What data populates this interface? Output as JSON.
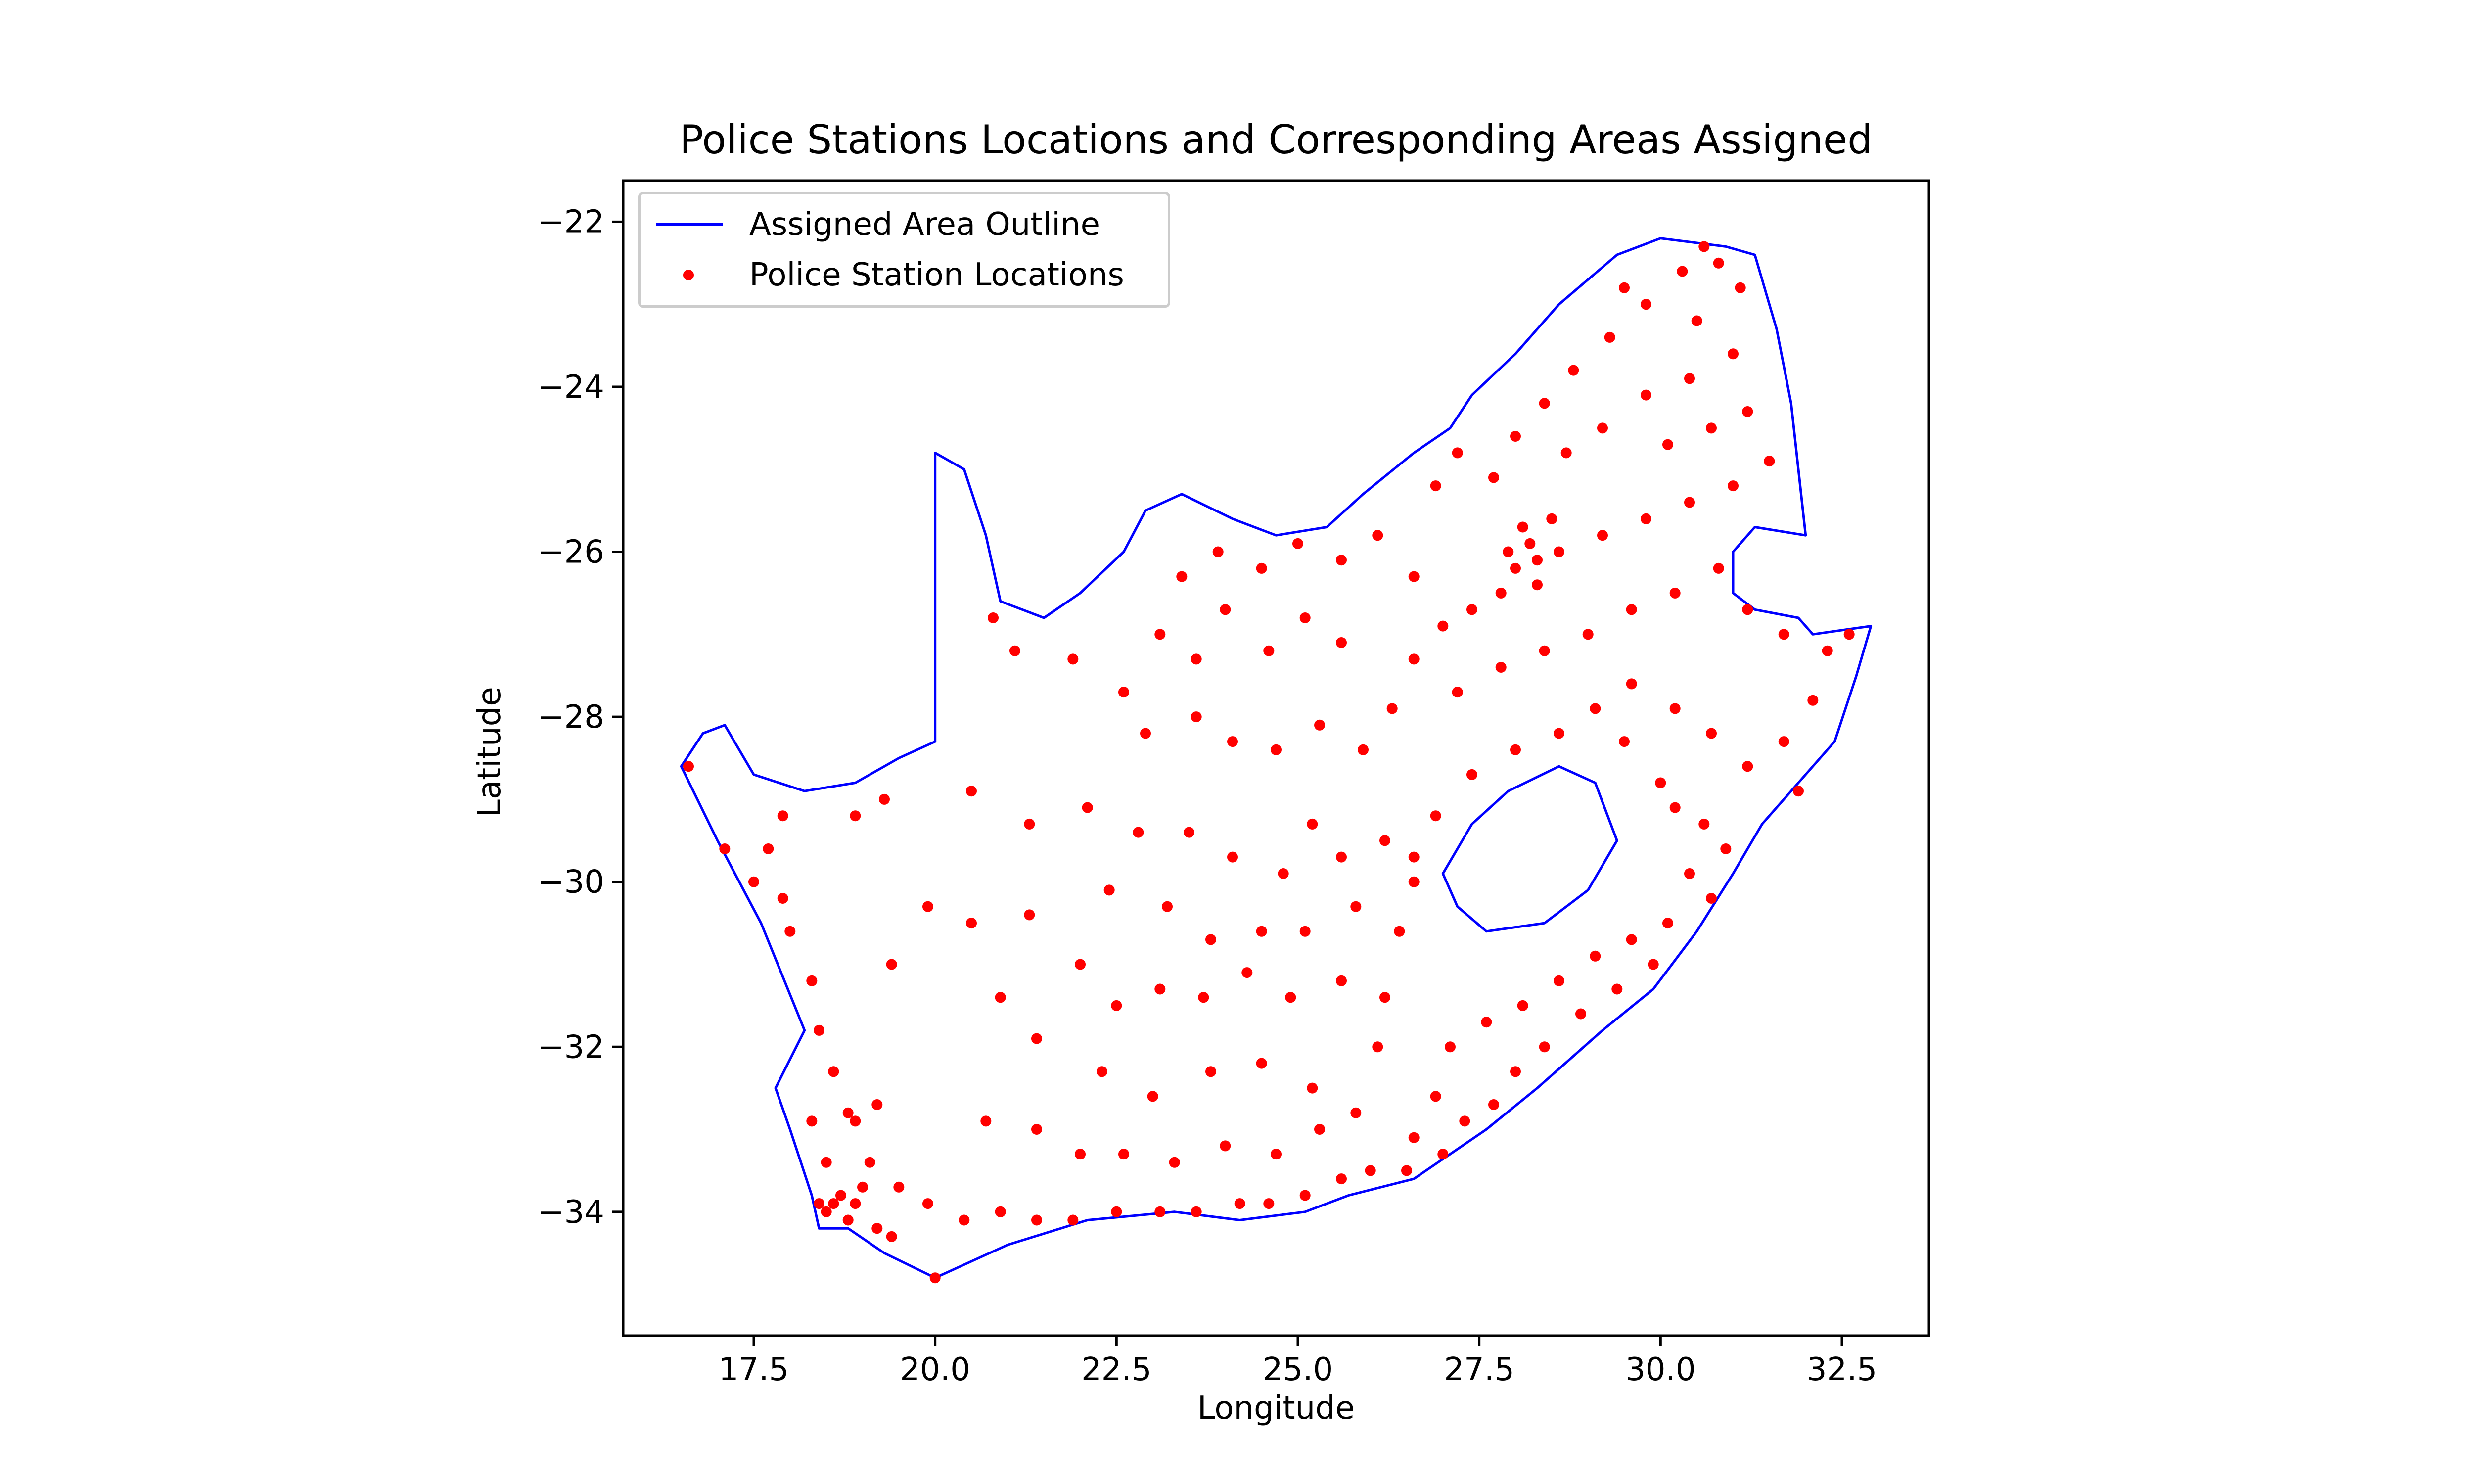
{
  "chart_data": {
    "type": "scatter",
    "title": "Police Stations Locations and Corresponding Areas Assigned",
    "xlabel": "Longitude",
    "ylabel": "Latitude",
    "xlim": [
      15.7,
      33.7
    ],
    "ylim": [
      -35.5,
      -21.5
    ],
    "xticks": [
      17.5,
      20.0,
      22.5,
      25.0,
      27.5,
      30.0,
      32.5
    ],
    "xtick_labels": [
      "17.5",
      "20.0",
      "22.5",
      "25.0",
      "27.5",
      "30.0",
      "32.5"
    ],
    "yticks": [
      -22,
      -24,
      -26,
      -28,
      -30,
      -32,
      -34
    ],
    "ytick_labels": [
      "−22",
      "−24",
      "−26",
      "−28",
      "−30",
      "−32",
      "−34"
    ],
    "grid": false,
    "legend_position": "top-left",
    "legend": [
      {
        "label": "Assigned Area Outline",
        "kind": "line",
        "color": "#0000ff"
      },
      {
        "label": "Police Station Locations",
        "kind": "marker",
        "color": "#ff0000"
      }
    ],
    "series": [
      {
        "name": "Assigned Area Outline",
        "kind": "polygon",
        "color": "#0000ff",
        "outline": [
          [
            16.5,
            -28.6
          ],
          [
            16.8,
            -28.2
          ],
          [
            17.1,
            -28.1
          ],
          [
            17.5,
            -28.7
          ],
          [
            18.2,
            -28.9
          ],
          [
            18.9,
            -28.8
          ],
          [
            19.5,
            -28.5
          ],
          [
            20.0,
            -28.3
          ],
          [
            20.0,
            -24.8
          ],
          [
            20.4,
            -25.0
          ],
          [
            20.7,
            -25.8
          ],
          [
            20.9,
            -26.6
          ],
          [
            21.5,
            -26.8
          ],
          [
            22.0,
            -26.5
          ],
          [
            22.6,
            -26.0
          ],
          [
            22.9,
            -25.5
          ],
          [
            23.4,
            -25.3
          ],
          [
            24.1,
            -25.6
          ],
          [
            24.7,
            -25.8
          ],
          [
            25.4,
            -25.7
          ],
          [
            25.9,
            -25.3
          ],
          [
            26.6,
            -24.8
          ],
          [
            27.1,
            -24.5
          ],
          [
            27.4,
            -24.1
          ],
          [
            28.0,
            -23.6
          ],
          [
            28.6,
            -23.0
          ],
          [
            29.4,
            -22.4
          ],
          [
            30.0,
            -22.2
          ],
          [
            30.9,
            -22.3
          ],
          [
            31.3,
            -22.4
          ],
          [
            31.6,
            -23.3
          ],
          [
            31.8,
            -24.2
          ],
          [
            31.9,
            -25.0
          ],
          [
            32.0,
            -25.8
          ],
          [
            31.3,
            -25.7
          ],
          [
            31.0,
            -26.0
          ],
          [
            31.0,
            -26.5
          ],
          [
            31.3,
            -26.7
          ],
          [
            31.9,
            -26.8
          ],
          [
            32.1,
            -27.0
          ],
          [
            32.9,
            -26.9
          ],
          [
            32.7,
            -27.5
          ],
          [
            32.4,
            -28.3
          ],
          [
            31.9,
            -28.8
          ],
          [
            31.4,
            -29.3
          ],
          [
            31.0,
            -29.9
          ],
          [
            30.5,
            -30.6
          ],
          [
            29.9,
            -31.3
          ],
          [
            29.2,
            -31.8
          ],
          [
            28.3,
            -32.5
          ],
          [
            27.6,
            -33.0
          ],
          [
            26.6,
            -33.6
          ],
          [
            25.7,
            -33.8
          ],
          [
            25.1,
            -34.0
          ],
          [
            24.2,
            -34.1
          ],
          [
            23.3,
            -34.0
          ],
          [
            22.1,
            -34.1
          ],
          [
            21.0,
            -34.4
          ],
          [
            20.0,
            -34.8
          ],
          [
            19.3,
            -34.5
          ],
          [
            18.8,
            -34.2
          ],
          [
            18.4,
            -34.2
          ],
          [
            18.3,
            -33.8
          ],
          [
            18.0,
            -33.0
          ],
          [
            17.8,
            -32.5
          ],
          [
            18.2,
            -31.8
          ],
          [
            17.6,
            -30.5
          ],
          [
            17.0,
            -29.5
          ],
          [
            16.5,
            -28.6
          ]
        ],
        "hole": [
          [
            27.0,
            -29.9
          ],
          [
            27.4,
            -29.3
          ],
          [
            27.9,
            -28.9
          ],
          [
            28.6,
            -28.6
          ],
          [
            29.1,
            -28.8
          ],
          [
            29.4,
            -29.5
          ],
          [
            29.0,
            -30.1
          ],
          [
            28.4,
            -30.5
          ],
          [
            27.6,
            -30.6
          ],
          [
            27.2,
            -30.3
          ],
          [
            27.0,
            -29.9
          ]
        ]
      },
      {
        "name": "Police Station Locations",
        "kind": "points",
        "color": "#ff0000",
        "points": [
          [
            16.6,
            -28.6
          ],
          [
            17.1,
            -29.6
          ],
          [
            17.5,
            -30.0
          ],
          [
            17.7,
            -29.6
          ],
          [
            17.9,
            -30.2
          ],
          [
            18.0,
            -30.6
          ],
          [
            18.3,
            -31.2
          ],
          [
            18.4,
            -31.8
          ],
          [
            18.6,
            -32.3
          ],
          [
            18.8,
            -32.8
          ],
          [
            19.1,
            -33.4
          ],
          [
            19.5,
            -33.7
          ],
          [
            19.9,
            -33.9
          ],
          [
            20.4,
            -34.1
          ],
          [
            20.9,
            -34.0
          ],
          [
            21.4,
            -34.1
          ],
          [
            21.9,
            -34.1
          ],
          [
            22.5,
            -34.0
          ],
          [
            23.1,
            -34.0
          ],
          [
            23.6,
            -34.0
          ],
          [
            24.2,
            -33.9
          ],
          [
            24.6,
            -33.9
          ],
          [
            25.1,
            -33.8
          ],
          [
            25.6,
            -33.6
          ],
          [
            26.0,
            -33.5
          ],
          [
            26.5,
            -33.5
          ],
          [
            18.4,
            -33.9
          ],
          [
            18.5,
            -34.0
          ],
          [
            18.6,
            -33.9
          ],
          [
            18.7,
            -33.8
          ],
          [
            18.8,
            -34.1
          ],
          [
            18.9,
            -33.9
          ],
          [
            19.0,
            -33.7
          ],
          [
            19.2,
            -34.2
          ],
          [
            19.4,
            -34.3
          ],
          [
            20.0,
            -34.8
          ],
          [
            18.5,
            -33.4
          ],
          [
            18.9,
            -32.9
          ],
          [
            19.2,
            -32.7
          ],
          [
            18.3,
            -32.9
          ],
          [
            17.9,
            -29.2
          ],
          [
            18.9,
            -29.2
          ],
          [
            19.3,
            -29.0
          ],
          [
            20.5,
            -28.9
          ],
          [
            19.4,
            -31.0
          ],
          [
            19.9,
            -30.3
          ],
          [
            20.5,
            -30.5
          ],
          [
            21.3,
            -30.4
          ],
          [
            22.0,
            -31.0
          ],
          [
            22.5,
            -31.5
          ],
          [
            23.1,
            -31.3
          ],
          [
            23.7,
            -31.4
          ],
          [
            24.3,
            -31.1
          ],
          [
            24.9,
            -31.4
          ],
          [
            25.6,
            -31.2
          ],
          [
            26.2,
            -31.4
          ],
          [
            20.9,
            -31.4
          ],
          [
            21.4,
            -31.9
          ],
          [
            22.3,
            -32.3
          ],
          [
            23.0,
            -32.6
          ],
          [
            23.8,
            -32.3
          ],
          [
            24.5,
            -32.2
          ],
          [
            25.2,
            -32.5
          ],
          [
            25.8,
            -32.8
          ],
          [
            26.1,
            -32.0
          ],
          [
            20.7,
            -32.9
          ],
          [
            21.4,
            -33.0
          ],
          [
            22.0,
            -33.3
          ],
          [
            22.6,
            -33.3
          ],
          [
            23.3,
            -33.4
          ],
          [
            24.0,
            -33.2
          ],
          [
            24.7,
            -33.3
          ],
          [
            25.3,
            -33.0
          ],
          [
            21.3,
            -29.3
          ],
          [
            22.1,
            -29.1
          ],
          [
            22.8,
            -29.4
          ],
          [
            23.5,
            -29.4
          ],
          [
            24.1,
            -29.7
          ],
          [
            24.8,
            -29.9
          ],
          [
            25.2,
            -29.3
          ],
          [
            25.6,
            -29.7
          ],
          [
            26.2,
            -29.5
          ],
          [
            26.6,
            -30.0
          ],
          [
            22.4,
            -30.1
          ],
          [
            23.2,
            -30.3
          ],
          [
            23.8,
            -30.7
          ],
          [
            24.5,
            -30.6
          ],
          [
            25.1,
            -30.6
          ],
          [
            25.8,
            -30.3
          ],
          [
            26.4,
            -30.6
          ],
          [
            20.8,
            -26.8
          ],
          [
            21.1,
            -27.2
          ],
          [
            21.9,
            -27.3
          ],
          [
            22.6,
            -27.7
          ],
          [
            23.1,
            -27.0
          ],
          [
            23.6,
            -27.3
          ],
          [
            24.0,
            -26.7
          ],
          [
            24.6,
            -27.2
          ],
          [
            25.1,
            -26.8
          ],
          [
            25.6,
            -27.1
          ],
          [
            22.9,
            -28.2
          ],
          [
            23.6,
            -28.0
          ],
          [
            24.1,
            -28.3
          ],
          [
            24.7,
            -28.4
          ],
          [
            25.3,
            -28.1
          ],
          [
            25.9,
            -28.4
          ],
          [
            26.3,
            -27.9
          ],
          [
            23.4,
            -26.3
          ],
          [
            23.9,
            -26.0
          ],
          [
            24.5,
            -26.2
          ],
          [
            25.0,
            -25.9
          ],
          [
            25.6,
            -26.1
          ],
          [
            26.1,
            -25.8
          ],
          [
            26.6,
            -26.3
          ],
          [
            26.9,
            -25.2
          ],
          [
            27.2,
            -24.8
          ],
          [
            27.7,
            -25.1
          ],
          [
            28.0,
            -24.6
          ],
          [
            28.4,
            -24.2
          ],
          [
            28.8,
            -23.8
          ],
          [
            29.3,
            -23.4
          ],
          [
            29.8,
            -23.0
          ],
          [
            30.3,
            -22.6
          ],
          [
            30.8,
            -22.5
          ],
          [
            31.1,
            -22.8
          ],
          [
            30.5,
            -23.2
          ],
          [
            31.0,
            -23.6
          ],
          [
            30.4,
            -23.9
          ],
          [
            29.8,
            -24.1
          ],
          [
            29.2,
            -24.5
          ],
          [
            28.7,
            -24.8
          ],
          [
            30.1,
            -24.7
          ],
          [
            30.7,
            -24.5
          ],
          [
            31.2,
            -24.3
          ],
          [
            31.5,
            -24.9
          ],
          [
            31.0,
            -25.2
          ],
          [
            30.4,
            -25.4
          ],
          [
            29.8,
            -25.6
          ],
          [
            29.2,
            -25.8
          ],
          [
            28.6,
            -26.0
          ],
          [
            28.2,
            -25.9
          ],
          [
            28.0,
            -26.2
          ],
          [
            28.3,
            -26.4
          ],
          [
            27.8,
            -26.5
          ],
          [
            27.4,
            -26.7
          ],
          [
            27.0,
            -26.9
          ],
          [
            26.6,
            -27.3
          ],
          [
            27.2,
            -27.7
          ],
          [
            27.8,
            -27.4
          ],
          [
            28.4,
            -27.2
          ],
          [
            29.0,
            -27.0
          ],
          [
            29.6,
            -26.7
          ],
          [
            30.2,
            -26.5
          ],
          [
            30.8,
            -26.2
          ],
          [
            31.2,
            -26.7
          ],
          [
            31.7,
            -27.0
          ],
          [
            32.3,
            -27.2
          ],
          [
            32.6,
            -27.0
          ],
          [
            32.1,
            -27.8
          ],
          [
            31.7,
            -28.3
          ],
          [
            31.2,
            -28.6
          ],
          [
            30.7,
            -28.2
          ],
          [
            30.2,
            -27.9
          ],
          [
            29.6,
            -27.6
          ],
          [
            29.1,
            -27.9
          ],
          [
            28.6,
            -28.2
          ],
          [
            28.0,
            -28.4
          ],
          [
            27.4,
            -28.7
          ],
          [
            26.9,
            -29.2
          ],
          [
            26.6,
            -29.7
          ],
          [
            30.6,
            -29.3
          ],
          [
            30.9,
            -29.6
          ],
          [
            30.4,
            -29.9
          ],
          [
            30.7,
            -30.2
          ],
          [
            30.1,
            -30.5
          ],
          [
            29.6,
            -30.7
          ],
          [
            29.1,
            -30.9
          ],
          [
            28.6,
            -31.2
          ],
          [
            28.1,
            -31.5
          ],
          [
            27.6,
            -31.7
          ],
          [
            27.1,
            -32.0
          ],
          [
            26.9,
            -32.6
          ],
          [
            27.3,
            -32.9
          ],
          [
            27.7,
            -32.7
          ],
          [
            28.0,
            -32.3
          ],
          [
            28.4,
            -32.0
          ],
          [
            28.9,
            -31.6
          ],
          [
            29.4,
            -31.3
          ],
          [
            29.9,
            -31.0
          ],
          [
            27.0,
            -33.3
          ],
          [
            26.6,
            -33.1
          ],
          [
            30.0,
            -28.8
          ],
          [
            29.5,
            -28.3
          ],
          [
            31.9,
            -28.9
          ],
          [
            30.2,
            -29.1
          ],
          [
            28.3,
            -26.1
          ],
          [
            28.1,
            -25.7
          ],
          [
            27.9,
            -26.0
          ],
          [
            28.5,
            -25.6
          ],
          [
            29.5,
            -22.8
          ],
          [
            30.6,
            -22.3
          ]
        ]
      }
    ]
  }
}
